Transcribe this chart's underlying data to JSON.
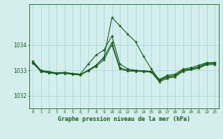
{
  "title": "Graphe pression niveau de la mer (hPa)",
  "background_color": "#d4eeee",
  "grid_color": "#a8d8d8",
  "line_color": "#1a5c1a",
  "ylabel_ticks": [
    1032,
    1033,
    1034
  ],
  "xlim": [
    -0.5,
    23.5
  ],
  "ylim": [
    1031.5,
    1035.6
  ],
  "xticks": [
    0,
    1,
    2,
    3,
    4,
    5,
    6,
    7,
    8,
    9,
    10,
    11,
    12,
    13,
    14,
    15,
    16,
    17,
    18,
    19,
    20,
    21,
    22,
    23
  ],
  "series": [
    [
      1033.35,
      1033.0,
      1032.95,
      1032.9,
      1032.92,
      1032.88,
      1032.85,
      1033.25,
      1033.6,
      1033.8,
      1034.35,
      1033.25,
      1033.05,
      1033.0,
      1032.98,
      1032.96,
      1032.64,
      1032.8,
      1032.85,
      1033.05,
      1033.1,
      1033.2,
      1033.3,
      1033.3
    ],
    [
      1033.3,
      1032.98,
      1032.92,
      1032.88,
      1032.9,
      1032.86,
      1032.83,
      1033.0,
      1033.2,
      1033.5,
      1034.1,
      1033.1,
      1033.0,
      1032.98,
      1032.96,
      1032.94,
      1032.58,
      1032.73,
      1032.78,
      1033.0,
      1033.05,
      1033.12,
      1033.25,
      1033.26
    ],
    [
      1033.28,
      1032.95,
      1032.9,
      1032.86,
      1032.88,
      1032.84,
      1032.81,
      1032.98,
      1033.15,
      1033.42,
      1034.0,
      1033.05,
      1032.97,
      1032.96,
      1032.95,
      1032.92,
      1032.55,
      1032.68,
      1032.74,
      1032.96,
      1033.02,
      1033.08,
      1033.22,
      1033.22
    ],
    [
      1033.35,
      1032.95,
      1032.92,
      1032.88,
      1032.9,
      1032.86,
      1032.83,
      1033.0,
      1033.2,
      1033.52,
      1035.08,
      1034.75,
      1034.42,
      1034.12,
      1033.55,
      1033.05,
      1032.62,
      1032.75,
      1032.8,
      1033.0,
      1033.05,
      1033.14,
      1033.28,
      1033.3
    ]
  ],
  "hours": [
    0,
    1,
    2,
    3,
    4,
    5,
    6,
    7,
    8,
    9,
    10,
    11,
    12,
    13,
    14,
    15,
    16,
    17,
    18,
    19,
    20,
    21,
    22,
    23
  ]
}
